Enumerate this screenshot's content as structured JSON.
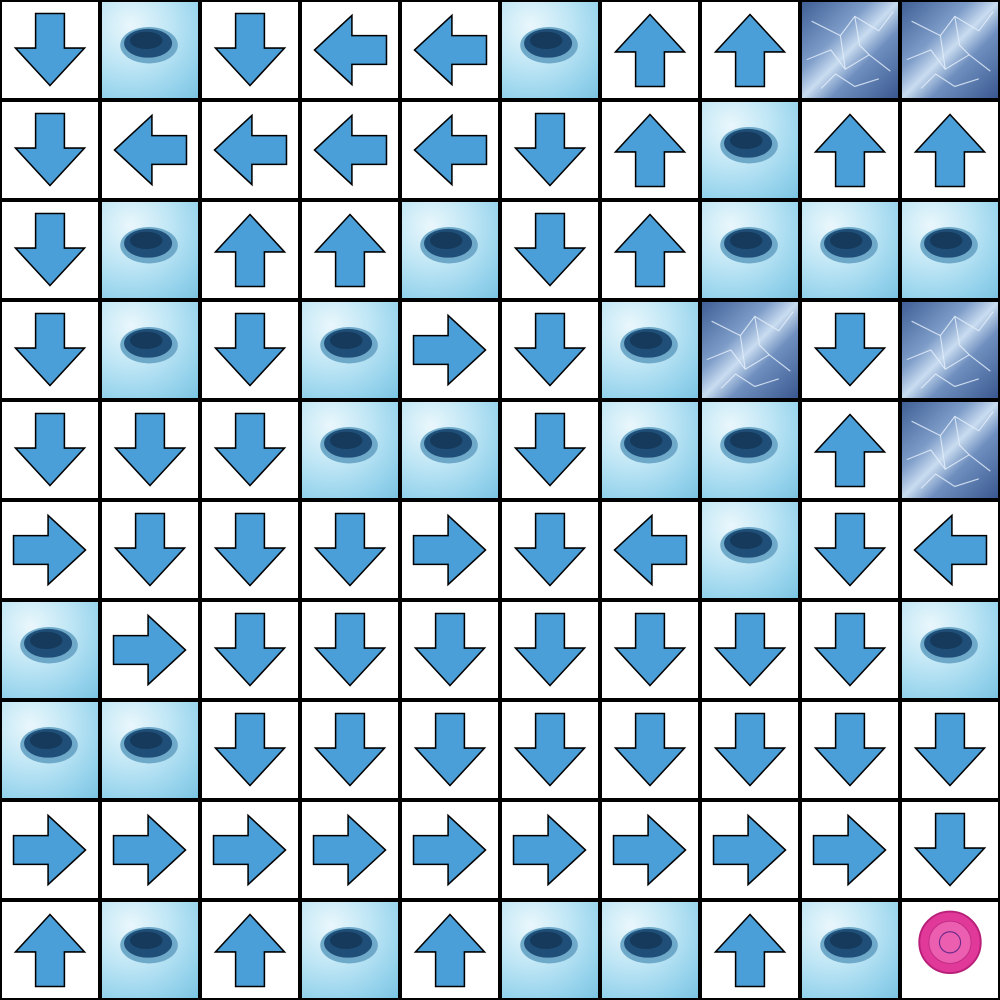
{
  "game": {
    "type": "frozen-lake-grid",
    "rows": 10,
    "cols": 10,
    "legend": {
      "U": "arrow-up",
      "D": "arrow-down",
      "L": "arrow-left",
      "R": "arrow-right",
      "H": "ice-hole",
      "I": "cracked-ice",
      "G": "goal-frisbee"
    },
    "grid": [
      [
        "D",
        "H",
        "D",
        "L",
        "L",
        "H",
        "U",
        "U",
        "I",
        "I"
      ],
      [
        "D",
        "L",
        "L",
        "L",
        "L",
        "D",
        "U",
        "H",
        "U",
        "U"
      ],
      [
        "D",
        "H",
        "U",
        "U",
        "H",
        "D",
        "U",
        "H",
        "H",
        "H"
      ],
      [
        "D",
        "H",
        "D",
        "H",
        "R",
        "D",
        "H",
        "I",
        "D",
        "I"
      ],
      [
        "D",
        "D",
        "D",
        "H",
        "H",
        "D",
        "H",
        "H",
        "U",
        "I"
      ],
      [
        "R",
        "D",
        "D",
        "D",
        "R",
        "D",
        "L",
        "H",
        "D",
        "L"
      ],
      [
        "H",
        "R",
        "D",
        "D",
        "D",
        "D",
        "D",
        "D",
        "D",
        "H"
      ],
      [
        "H",
        "H",
        "D",
        "D",
        "D",
        "D",
        "D",
        "D",
        "D",
        "D"
      ],
      [
        "R",
        "R",
        "R",
        "R",
        "R",
        "R",
        "R",
        "R",
        "R",
        "D"
      ],
      [
        "U",
        "H",
        "U",
        "H",
        "U",
        "H",
        "H",
        "U",
        "H",
        "G"
      ]
    ]
  },
  "colors": {
    "arrow_fill": "#4a9fd8",
    "arrow_stroke": "#000000",
    "grid_line": "#000000",
    "cell_bg": "#ffffff",
    "hole_dark": "#1f4f78",
    "goal_pink": "#e0399a"
  }
}
